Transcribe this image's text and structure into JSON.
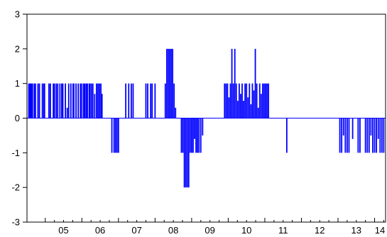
{
  "chart_data": {
    "type": "bar",
    "title": "",
    "xlabel": "",
    "ylabel": "",
    "ylim": [
      -3,
      3
    ],
    "yticks": [
      -3,
      -2,
      -1,
      0,
      1,
      2,
      3
    ],
    "xlim": [
      2004.5,
      2014.3
    ],
    "xticks": [
      "05",
      "06",
      "07",
      "08",
      "09",
      "10",
      "11",
      "12",
      "13",
      "14"
    ],
    "grid": false,
    "legend": "none",
    "bar_color": "#0000ff",
    "axis_color": "#000000",
    "series": [
      {
        "values": [
          [
            2004.55,
            1
          ],
          [
            2004.58,
            1
          ],
          [
            2004.6,
            1
          ],
          [
            2004.63,
            1
          ],
          [
            2004.65,
            1
          ],
          [
            2004.7,
            1
          ],
          [
            2004.73,
            1
          ],
          [
            2004.8,
            1
          ],
          [
            2004.84,
            1
          ],
          [
            2004.92,
            1
          ],
          [
            2004.96,
            1
          ],
          [
            2004.98,
            1
          ],
          [
            2005.1,
            1
          ],
          [
            2005.14,
            1
          ],
          [
            2005.22,
            1
          ],
          [
            2005.25,
            1
          ],
          [
            2005.3,
            1
          ],
          [
            2005.34,
            1
          ],
          [
            2005.4,
            1
          ],
          [
            2005.45,
            1
          ],
          [
            2005.48,
            1
          ],
          [
            2005.55,
            1
          ],
          [
            2005.6,
            0.3
          ],
          [
            2005.64,
            1
          ],
          [
            2005.7,
            1
          ],
          [
            2005.76,
            1
          ],
          [
            2005.78,
            1
          ],
          [
            2005.84,
            1
          ],
          [
            2005.9,
            1
          ],
          [
            2005.96,
            1
          ],
          [
            2006.0,
            1
          ],
          [
            2006.05,
            1
          ],
          [
            2006.08,
            1
          ],
          [
            2006.12,
            1
          ],
          [
            2006.15,
            1
          ],
          [
            2006.2,
            1
          ],
          [
            2006.22,
            1
          ],
          [
            2006.26,
            1
          ],
          [
            2006.3,
            1
          ],
          [
            2006.35,
            0.7
          ],
          [
            2006.4,
            1
          ],
          [
            2006.44,
            1
          ],
          [
            2006.48,
            1
          ],
          [
            2006.52,
            1
          ],
          [
            2006.55,
            0.7
          ],
          [
            2006.82,
            -1
          ],
          [
            2006.88,
            -1
          ],
          [
            2006.92,
            -1
          ],
          [
            2006.96,
            -1
          ],
          [
            2007.0,
            -1
          ],
          [
            2007.2,
            1
          ],
          [
            2007.28,
            1
          ],
          [
            2007.35,
            1
          ],
          [
            2007.4,
            1
          ],
          [
            2007.75,
            1
          ],
          [
            2007.8,
            1
          ],
          [
            2007.88,
            1
          ],
          [
            2007.92,
            1
          ],
          [
            2008.0,
            1
          ],
          [
            2008.28,
            1
          ],
          [
            2008.32,
            2
          ],
          [
            2008.36,
            2
          ],
          [
            2008.4,
            2
          ],
          [
            2008.44,
            2
          ],
          [
            2008.48,
            2
          ],
          [
            2008.52,
            1
          ],
          [
            2008.56,
            0.3
          ],
          [
            2008.72,
            -1
          ],
          [
            2008.76,
            -1
          ],
          [
            2008.8,
            -2
          ],
          [
            2008.84,
            -2
          ],
          [
            2008.88,
            -2
          ],
          [
            2008.92,
            -2
          ],
          [
            2008.96,
            -1
          ],
          [
            2009.0,
            -1
          ],
          [
            2009.04,
            -1
          ],
          [
            2009.08,
            -0.6
          ],
          [
            2009.12,
            -1
          ],
          [
            2009.16,
            -1
          ],
          [
            2009.2,
            -1
          ],
          [
            2009.25,
            -1
          ],
          [
            2009.3,
            -0.5
          ],
          [
            2009.9,
            1
          ],
          [
            2009.94,
            1
          ],
          [
            2009.98,
            1
          ],
          [
            2010.02,
            0.6
          ],
          [
            2010.06,
            1
          ],
          [
            2010.1,
            2
          ],
          [
            2010.14,
            1
          ],
          [
            2010.18,
            2
          ],
          [
            2010.22,
            1
          ],
          [
            2010.26,
            0.5
          ],
          [
            2010.3,
            1
          ],
          [
            2010.34,
            0.7
          ],
          [
            2010.38,
            1
          ],
          [
            2010.42,
            0.5
          ],
          [
            2010.46,
            1
          ],
          [
            2010.5,
            1
          ],
          [
            2010.54,
            0.6
          ],
          [
            2010.58,
            1
          ],
          [
            2010.62,
            0.4
          ],
          [
            2010.66,
            1
          ],
          [
            2010.7,
            0.8
          ],
          [
            2010.74,
            2
          ],
          [
            2010.78,
            1
          ],
          [
            2010.82,
            0.3
          ],
          [
            2010.86,
            1
          ],
          [
            2010.9,
            0.7
          ],
          [
            2010.94,
            1
          ],
          [
            2010.98,
            1
          ],
          [
            2011.02,
            1
          ],
          [
            2011.06,
            1
          ],
          [
            2011.1,
            1
          ],
          [
            2011.6,
            -1
          ],
          [
            2013.05,
            -1
          ],
          [
            2013.1,
            -1
          ],
          [
            2013.15,
            -0.5
          ],
          [
            2013.2,
            -1
          ],
          [
            2013.25,
            -1
          ],
          [
            2013.3,
            -1
          ],
          [
            2013.4,
            -0.6
          ],
          [
            2013.55,
            -1
          ],
          [
            2013.6,
            -1
          ],
          [
            2013.75,
            -1
          ],
          [
            2013.8,
            -1
          ],
          [
            2013.85,
            -1
          ],
          [
            2013.9,
            -0.5
          ],
          [
            2013.95,
            -1
          ],
          [
            2014.0,
            -1
          ],
          [
            2014.05,
            -1
          ],
          [
            2014.1,
            -0.6
          ],
          [
            2014.15,
            -1
          ],
          [
            2014.2,
            -1
          ],
          [
            2014.25,
            -1
          ]
        ]
      }
    ]
  }
}
